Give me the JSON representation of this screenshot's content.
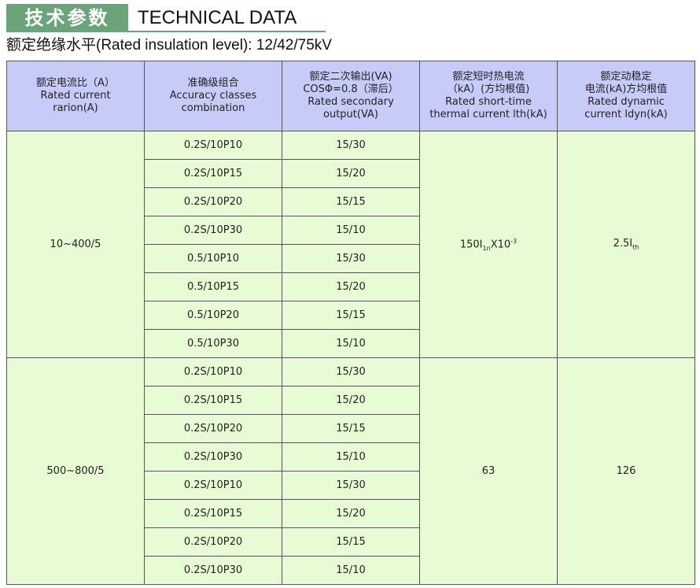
{
  "title": {
    "cn": "技术参数",
    "en": "TECHNICAL DATA"
  },
  "subtitle": "额定绝缘水平(Rated insulation level): 12/42/75kV",
  "colors": {
    "title_green": "#6ba478",
    "header_bg": "#c6ccf7",
    "body_bg": "#e7fcd4"
  },
  "headers": [
    [
      "额定电流比（A）",
      "Rated current",
      "rarion(A)"
    ],
    [
      "准确级组合",
      "Accuracy classes",
      "combination"
    ],
    [
      "额定二次输出(VA)",
      "COSΦ=0.8（滞后）",
      "Rated secondary",
      "output(VA)"
    ],
    [
      "额定短时热电流",
      "（kA）(方均根值)",
      "Rated short-time",
      "thermal current lth(kA)"
    ],
    [
      "额定动稳定",
      "电流(kA)方均根值",
      "Rated dynamic",
      "current ldyn(kA)"
    ]
  ],
  "groups": [
    {
      "ratio": "10~400/5",
      "thermal": {
        "base": "150I",
        "sub": "1n",
        "mid": "X10",
        "sup": "-3"
      },
      "dynamic": {
        "base": "2.5I",
        "sub": "th"
      },
      "rows": [
        [
          "0.2S/10P10",
          "15/30"
        ],
        [
          "0.2S/10P15",
          "15/20"
        ],
        [
          "0.2S/10P20",
          "15/15"
        ],
        [
          "0.2S/10P30",
          "15/10"
        ],
        [
          "0.5/10P10",
          "15/30"
        ],
        [
          "0.5/10P15",
          "15/20"
        ],
        [
          "0.5/10P20",
          "15/15"
        ],
        [
          "0.5/10P30",
          "15/10"
        ]
      ]
    },
    {
      "ratio": "500~800/5",
      "thermal": "63",
      "dynamic": "126",
      "rows": [
        [
          "0.2S/10P10",
          "15/30"
        ],
        [
          "0.2S/10P15",
          "15/20"
        ],
        [
          "0.2S/10P20",
          "15/15"
        ],
        [
          "0.2S/10P30",
          "15/10"
        ],
        [
          "0.2S/10P10",
          "15/30"
        ],
        [
          "0.2S/10P15",
          "15/20"
        ],
        [
          "0.2S/10P20",
          "15/15"
        ],
        [
          "0.2S/10P30",
          "15/10"
        ]
      ]
    }
  ]
}
